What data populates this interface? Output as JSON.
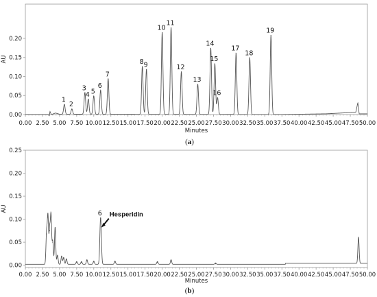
{
  "colors": {
    "trace": "#555555",
    "axis": "#9a9a9a",
    "grid": "#e3e3e3",
    "text": "#222222"
  },
  "chart_data": [
    {
      "type": "line",
      "panel_label": "a",
      "xlabel": "Minutes",
      "ylabel": "AU",
      "xlim": [
        0,
        50
      ],
      "ylim": [
        0,
        0.29
      ],
      "x_ticks": [
        "0.00",
        "2.50",
        "5.00",
        "7.50",
        "10.00",
        "12.50",
        "15.00",
        "17.50",
        "20.00",
        "22.50",
        "25.00",
        "27.50",
        "30.00",
        "32.50",
        "35.00",
        "37.50",
        "40.00",
        "42.50",
        "45.00",
        "47.50",
        "50.00"
      ],
      "y_ticks": [
        "0.00",
        "0.05",
        "0.10",
        "0.15",
        "0.20"
      ],
      "y_tick_values": [
        0,
        0.05,
        0.1,
        0.15,
        0.2
      ],
      "peaks": [
        {
          "label": "1",
          "x": 5.7,
          "y": 0.026
        },
        {
          "label": "2",
          "x": 6.8,
          "y": 0.014
        },
        {
          "label": "3",
          "x": 8.7,
          "y": 0.057
        },
        {
          "label": "4",
          "x": 9.2,
          "y": 0.04
        },
        {
          "label": "5",
          "x": 10.0,
          "y": 0.048
        },
        {
          "label": "6",
          "x": 11.0,
          "y": 0.063
        },
        {
          "label": "7",
          "x": 12.1,
          "y": 0.093
        },
        {
          "label": "8",
          "x": 17.1,
          "y": 0.126
        },
        {
          "label": "9",
          "x": 17.7,
          "y": 0.118
        },
        {
          "label": "10",
          "x": 20.0,
          "y": 0.215
        },
        {
          "label": "11",
          "x": 21.3,
          "y": 0.228
        },
        {
          "label": "12",
          "x": 22.8,
          "y": 0.112
        },
        {
          "label": "13",
          "x": 25.2,
          "y": 0.079
        },
        {
          "label": "14",
          "x": 27.1,
          "y": 0.174
        },
        {
          "label": "15",
          "x": 27.7,
          "y": 0.133
        },
        {
          "label": "16",
          "x": 28.1,
          "y": 0.044
        },
        {
          "label": "17",
          "x": 30.8,
          "y": 0.161
        },
        {
          "label": "18",
          "x": 32.8,
          "y": 0.149
        },
        {
          "label": "19",
          "x": 35.9,
          "y": 0.208
        }
      ],
      "baseline_points": [
        [
          0,
          0.0
        ],
        [
          3.3,
          0.0
        ],
        [
          3.5,
          -0.003
        ],
        [
          3.6,
          0.008
        ],
        [
          3.8,
          0.0
        ],
        [
          4.4,
          0.004
        ],
        [
          5.0,
          0.001
        ],
        [
          37,
          0.0
        ],
        [
          44,
          0.002
        ],
        [
          48.3,
          0.006
        ],
        [
          48.6,
          0.031
        ],
        [
          48.8,
          0.002
        ],
        [
          50,
          0.002
        ]
      ]
    },
    {
      "type": "line",
      "panel_label": "b",
      "xlabel": "Minutes",
      "ylabel": "AU",
      "xlim": [
        0,
        50
      ],
      "ylim": [
        -0.005,
        0.25
      ],
      "x_ticks": [
        "0.00",
        "2.50",
        "5.00",
        "7.50",
        "10.00",
        "12.50",
        "15.00",
        "17.50",
        "20.00",
        "22.50",
        "25.00",
        "27.50",
        "30.00",
        "32.50",
        "35.00",
        "37.50",
        "40.00",
        "42.50",
        "45.00",
        "47.50",
        "50.00"
      ],
      "y_ticks": [
        "0.00",
        "0.05",
        "0.10",
        "0.15",
        "0.20",
        "0.25"
      ],
      "y_tick_values": [
        0,
        0.05,
        0.1,
        0.15,
        0.2,
        0.25
      ],
      "peaks": [
        {
          "x": 3.1,
          "y": 0.068
        },
        {
          "x": 3.3,
          "y": 0.104
        },
        {
          "x": 3.55,
          "y": 0.075
        },
        {
          "x": 3.75,
          "y": 0.105
        },
        {
          "x": 4.0,
          "y": 0.05
        },
        {
          "x": 4.35,
          "y": 0.081
        },
        {
          "x": 4.7,
          "y": 0.02
        },
        {
          "x": 5.3,
          "y": 0.018
        },
        {
          "x": 5.6,
          "y": 0.015
        },
        {
          "x": 6.0,
          "y": 0.012
        },
        {
          "x": 7.5,
          "y": 0.006
        },
        {
          "x": 8.2,
          "y": 0.006
        },
        {
          "x": 9.0,
          "y": 0.01
        },
        {
          "x": 10.0,
          "y": 0.007
        },
        {
          "label": "6",
          "x": 11.0,
          "y": 0.102
        },
        {
          "x": 13.1,
          "y": 0.007
        },
        {
          "x": 19.3,
          "y": 0.006
        },
        {
          "x": 21.3,
          "y": 0.01
        },
        {
          "x": 27.8,
          "y": 0.003
        },
        {
          "x": 48.7,
          "y": 0.057
        }
      ],
      "annotation": {
        "text": "Hesperidin",
        "x": 11.2,
        "y": 0.085
      }
    }
  ]
}
